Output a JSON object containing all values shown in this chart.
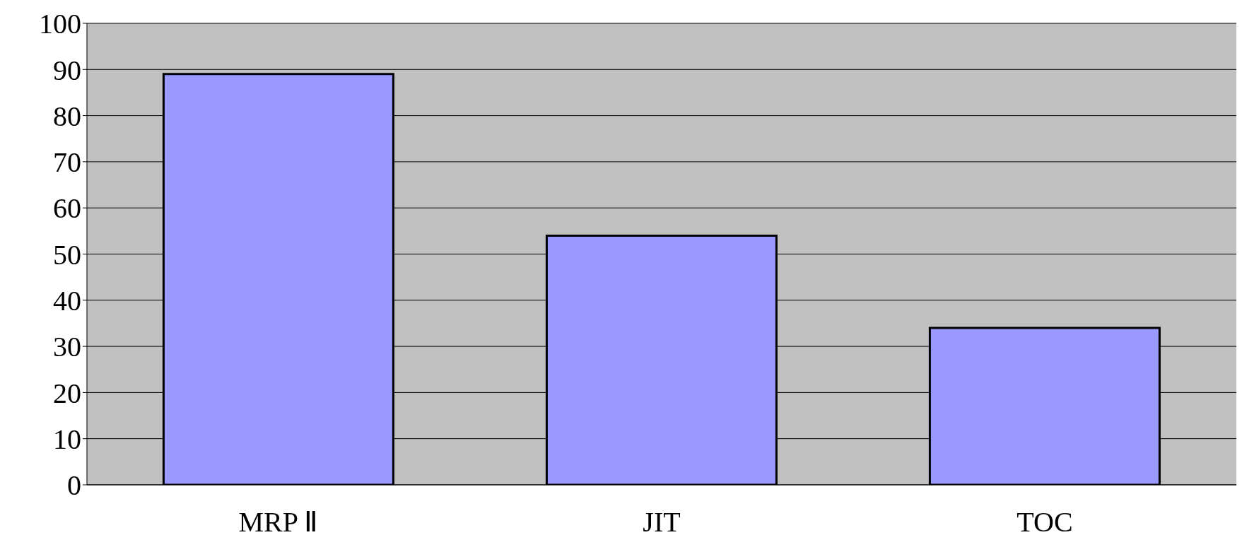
{
  "chart_data": {
    "type": "bar",
    "categories": [
      "MRP Ⅱ",
      "JIT",
      "TOC"
    ],
    "values": [
      89,
      54,
      34
    ],
    "color": "#9999ff",
    "ylim": [
      0,
      100
    ],
    "yticks": [
      0,
      10,
      20,
      30,
      40,
      50,
      60,
      70,
      80,
      90,
      100
    ],
    "grid": "y",
    "legend": false
  }
}
